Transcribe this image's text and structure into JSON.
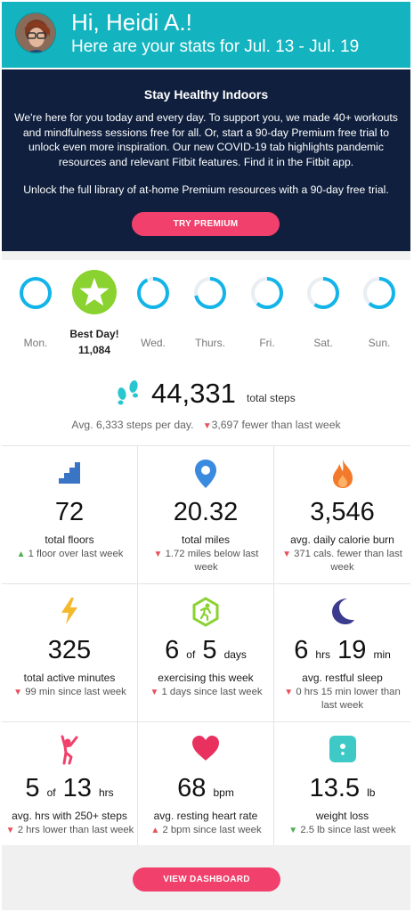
{
  "header": {
    "greeting": "Hi, Heidi A.!",
    "subtitle": "Here are your stats for Jul. 13 - Jul. 19"
  },
  "promo": {
    "title": "Stay Healthy Indoors",
    "body": "We're here for you today and every day. To support you, we made 40+ workouts and mindfulness sessions free for all. Or, start a 90-day Premium free trial to unlock even more inspiration. Our new COVID-19 tab highlights pandemic resources and relevant Fitbit features. Find it in the Fitbit app.",
    "unlock": "Unlock the full library of at-home Premium resources with a 90-day free trial.",
    "button": "TRY PREMIUM"
  },
  "week": {
    "days": [
      {
        "label": "Mon.",
        "progress": 1.0
      },
      {
        "label": "Best Day!",
        "value": "11,084",
        "best": true
      },
      {
        "label": "Wed.",
        "progress": 0.93
      },
      {
        "label": "Thurs.",
        "progress": 0.72
      },
      {
        "label": "Fri.",
        "progress": 0.62
      },
      {
        "label": "Sat.",
        "progress": 0.6
      },
      {
        "label": "Sun.",
        "progress": 0.62
      }
    ]
  },
  "steps": {
    "total": "44,331",
    "unit": "total steps",
    "avg": "Avg. 6,333 steps per day.",
    "change": "3,697 fewer than last week"
  },
  "stats": [
    {
      "icon": "stairs-icon",
      "value": "72",
      "label": "total floors",
      "dir": "up",
      "change": "1 floor over last week"
    },
    {
      "icon": "location-pin-icon",
      "value": "20.32",
      "label": "total miles",
      "dir": "down",
      "change": "1.72 miles below last week"
    },
    {
      "icon": "flame-icon",
      "value": "3,546",
      "label": "avg. daily calorie burn",
      "dir": "down",
      "change": "371 cals. fewer than last week"
    },
    {
      "icon": "lightning-icon",
      "value": "325",
      "label": "total active minutes",
      "dir": "down",
      "change": "99 min since last week"
    },
    {
      "icon": "runner-hexagon-icon",
      "value_a": "6",
      "of": "of",
      "value_b": "5",
      "unit": "days",
      "label": "exercising this week",
      "dir": "down",
      "change": "1 days since last week"
    },
    {
      "icon": "moon-icon",
      "value_a": "6",
      "unit_a": "hrs",
      "value_b": "19",
      "unit_b": "min",
      "label": "avg. restful sleep",
      "dir": "down",
      "change": "0 hrs 15 min lower than last week"
    },
    {
      "icon": "person-stretch-icon",
      "value_a": "5",
      "of": "of",
      "value_b": "13",
      "unit": "hrs",
      "label": "avg. hrs with 250+ steps",
      "dir": "down",
      "change": "2 hrs lower than last week"
    },
    {
      "icon": "heart-icon",
      "value": "68",
      "unit": "bpm",
      "label": "avg. resting heart rate",
      "dir": "up-red",
      "change": "2 bpm since last week"
    },
    {
      "icon": "scale-icon",
      "value": "13.5",
      "unit": "lb",
      "label": "weight loss",
      "dir": "down-green",
      "change": "2.5 lb since last week"
    }
  ],
  "footer": {
    "button": "VIEW DASHBOARD"
  },
  "colors": {
    "header": "#13b4bf",
    "promo_bg": "#0f1f3d",
    "accent_pink": "#f0406b",
    "ring": "#13b4e8",
    "best_day": "#8ad230"
  }
}
